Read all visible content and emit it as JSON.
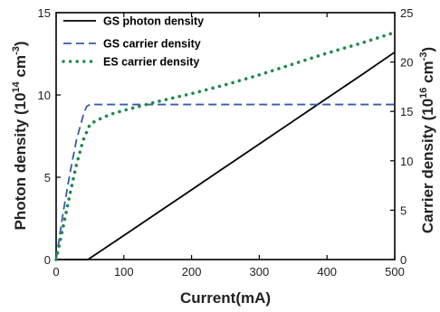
{
  "chart_data": {
    "type": "line",
    "x": [
      0,
      50,
      100,
      150,
      200,
      250,
      300,
      350,
      400,
      450,
      500
    ],
    "xlabel": "Current(mA)",
    "xlim": [
      0,
      500
    ],
    "x_ticks": [
      "0",
      "100",
      "200",
      "300",
      "400",
      "500"
    ],
    "y_left": {
      "label_parts": [
        "Photon density (10",
        "14",
        " cm",
        "-3",
        ")"
      ],
      "lim": [
        0,
        15
      ],
      "ticks": [
        "0",
        "5",
        "10",
        "15"
      ]
    },
    "y_right": {
      "label_parts": [
        "Carrier density (10",
        "16",
        " cm",
        "-3",
        ")"
      ],
      "lim": [
        0,
        25
      ],
      "ticks": [
        "0",
        "5",
        "10",
        "15",
        "20",
        "25"
      ]
    },
    "series": [
      {
        "name": "GS photon density",
        "axis": "left",
        "style": "solid",
        "color": "#000000",
        "points": [
          [
            0,
            0
          ],
          [
            47,
            0
          ],
          [
            100,
            1.46
          ],
          [
            150,
            2.85
          ],
          [
            200,
            4.24
          ],
          [
            250,
            5.63
          ],
          [
            300,
            7.02
          ],
          [
            350,
            8.41
          ],
          [
            400,
            9.8
          ],
          [
            450,
            11.19
          ],
          [
            500,
            12.6
          ]
        ]
      },
      {
        "name": "GS carrier density",
        "axis": "right",
        "style": "dashed",
        "color": "#3a5ba8",
        "points": [
          [
            0,
            0
          ],
          [
            10,
            4.6
          ],
          [
            20,
            8.6
          ],
          [
            30,
            12.1
          ],
          [
            40,
            14.6
          ],
          [
            45,
            15.5
          ],
          [
            50,
            15.7
          ],
          [
            100,
            15.7
          ],
          [
            200,
            15.7
          ],
          [
            300,
            15.7
          ],
          [
            400,
            15.7
          ],
          [
            500,
            15.7
          ]
        ]
      },
      {
        "name": "ES carrier density",
        "axis": "right",
        "style": "dotted",
        "color": "#1f8a4a",
        "points": [
          [
            0,
            0
          ],
          [
            10,
            3.2
          ],
          [
            20,
            6.5
          ],
          [
            30,
            9.6
          ],
          [
            40,
            12.1
          ],
          [
            50,
            13.7
          ],
          [
            60,
            14.1
          ],
          [
            80,
            14.7
          ],
          [
            100,
            15.1
          ],
          [
            150,
            16.0
          ],
          [
            200,
            16.8
          ],
          [
            250,
            17.7
          ],
          [
            300,
            18.7
          ],
          [
            350,
            19.8
          ],
          [
            400,
            20.9
          ],
          [
            450,
            21.9
          ],
          [
            500,
            23.0
          ]
        ]
      }
    ],
    "legend": {
      "placement": "top-left"
    }
  }
}
